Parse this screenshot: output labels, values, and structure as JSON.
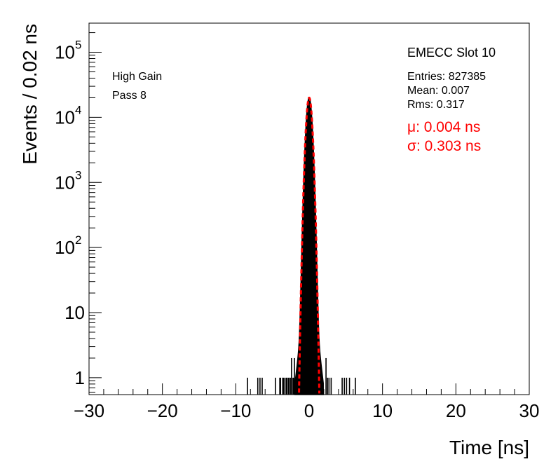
{
  "chart_data": {
    "type": "histogram",
    "title": "",
    "xlabel": "Time [ns]",
    "ylabel": "Events / 0.02 ns",
    "xlim": [
      -30,
      30
    ],
    "ylim": [
      0.55,
      280000
    ],
    "yscale": "log",
    "grid": false,
    "x_ticks": [
      {
        "value": -30,
        "label": "−30"
      },
      {
        "value": -20,
        "label": "−20"
      },
      {
        "value": -10,
        "label": "−10"
      },
      {
        "value": 0,
        "label": "0"
      },
      {
        "value": 10,
        "label": "10"
      },
      {
        "value": 20,
        "label": "20"
      },
      {
        "value": 30,
        "label": "30"
      }
    ],
    "y_ticks": [
      {
        "value": 1,
        "base": "1",
        "exp": ""
      },
      {
        "value": 10,
        "base": "10",
        "exp": ""
      },
      {
        "value": 100,
        "base": "10",
        "exp": "2"
      },
      {
        "value": 1000,
        "base": "10",
        "exp": "3"
      },
      {
        "value": 10000,
        "base": "10",
        "exp": "4"
      },
      {
        "value": 100000,
        "base": "10",
        "exp": "5"
      }
    ],
    "annotations_left": [
      "High Gain",
      "Pass 8"
    ],
    "stats": {
      "name": "EMECC Slot 10",
      "entries": "Entries: 827385",
      "mean": "Mean: 0.007",
      "rms": "Rms: 0.317"
    },
    "fit": {
      "mu_label": "μ: 0.004 ns",
      "sigma_label": "σ: 0.303 ns",
      "mu": 0.004,
      "sigma": 0.303,
      "peak": 20000,
      "color": "#ff0000",
      "style": "dashed"
    },
    "histogram": {
      "color": "#000000",
      "bin_width": 0.02,
      "peak_x": 0.0,
      "peak_y": 20000,
      "core_sigma": 0.303,
      "tail_points": [
        [
          -2.0,
          8
        ],
        [
          -1.8,
          14
        ],
        [
          1.6,
          15
        ],
        [
          1.8,
          10
        ],
        [
          2.0,
          6
        ],
        [
          2.2,
          3
        ],
        [
          2.4,
          2
        ]
      ],
      "outlier_x": [
        -8.4,
        -7.0,
        -6.7,
        -6.4,
        -4.6,
        -4.0,
        -3.9,
        -3.6,
        -3.5,
        -3.3,
        -3.1,
        -3.0,
        -2.8,
        -2.7,
        -2.5,
        -2.4,
        -2.2,
        -2.1,
        -2.0,
        2.3,
        2.5,
        2.7,
        3.0,
        4.5,
        4.8,
        5.1,
        5.5,
        6.3
      ],
      "outlier_y": [
        1,
        1,
        1,
        1,
        1,
        1,
        1,
        1,
        1,
        1,
        1,
        1,
        1,
        1,
        1,
        2,
        1,
        1,
        2,
        2,
        1,
        1,
        1,
        1,
        1,
        1,
        1,
        1
      ]
    }
  }
}
